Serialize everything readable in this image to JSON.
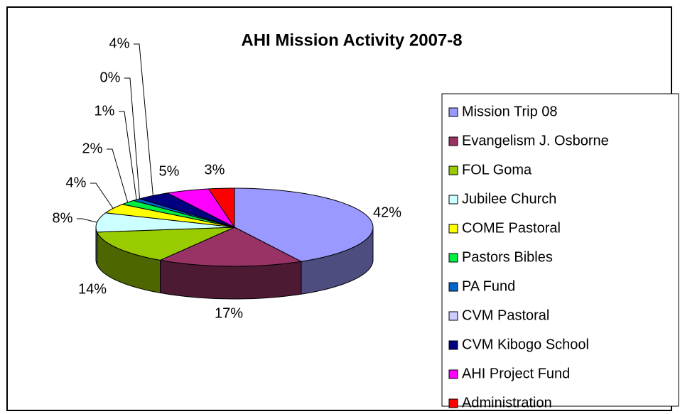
{
  "chart_data": {
    "type": "pie",
    "title": "AHI Mission Activity 2007-8",
    "categories": [
      "Mission Trip 08",
      "Evangelism J. Osborne",
      "FOL Goma",
      "Jubilee Church",
      "COME Pastoral",
      "Pastors Bibles",
      "PA Fund",
      "CVM Pastoral",
      "CVM Kibogo School",
      "AHI Project Fund",
      "Administration"
    ],
    "values": [
      42,
      17,
      14,
      8,
      4,
      2,
      1,
      0,
      4,
      5,
      3
    ],
    "value_labels": [
      "42%",
      "17%",
      "14%",
      "8%",
      "4%",
      "2%",
      "1%",
      "0%",
      "4%",
      "5%",
      "3%"
    ],
    "colors": [
      "#9999ff",
      "#993366",
      "#99cc00",
      "#ccffff",
      "#ffff00",
      "#00ee44",
      "#0066cc",
      "#ccccff",
      "#000080",
      "#ff00ff",
      "#ff0000"
    ],
    "legend": "right"
  }
}
